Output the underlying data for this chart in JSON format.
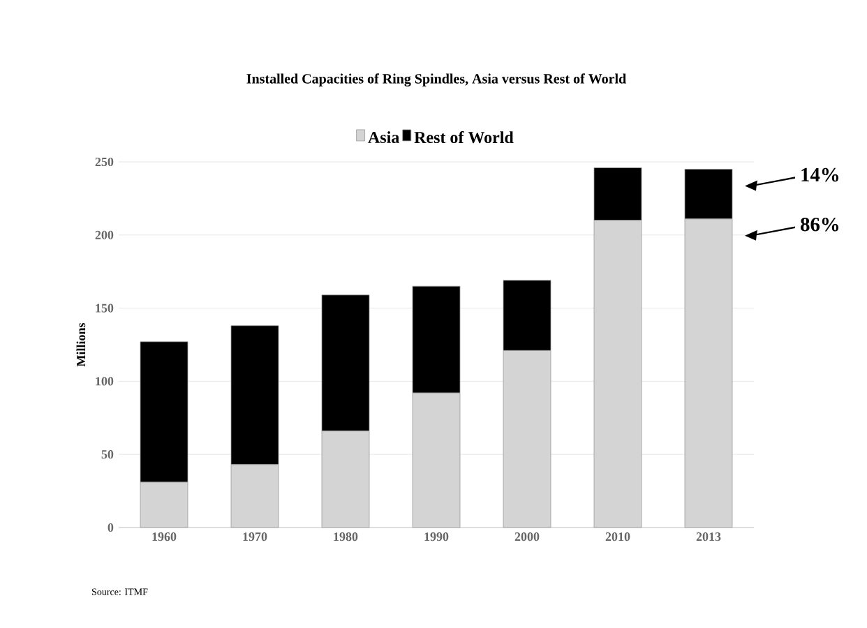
{
  "chart_data": {
    "type": "bar",
    "stacked": true,
    "title": "Installed Capacities of Ring Spindles, Asia versus Rest of World",
    "ylabel": "Millions",
    "categories": [
      "1960",
      "1970",
      "1980",
      "1990",
      "2000",
      "2010",
      "2013"
    ],
    "series": [
      {
        "name": "Asia",
        "color": "#d4d4d4",
        "values": [
          31,
          43,
          66,
          92,
          121,
          210,
          211
        ]
      },
      {
        "name": "Rest of World",
        "color": "#000000",
        "values": [
          96,
          95,
          93,
          73,
          48,
          36,
          34
        ]
      }
    ],
    "ylim": [
      0,
      250
    ],
    "yticks": [
      0,
      50,
      100,
      150,
      200,
      250
    ],
    "grid": "y",
    "legend": "top",
    "annotations": [
      "14%",
      "86%",
      "Source: ITMF"
    ]
  }
}
